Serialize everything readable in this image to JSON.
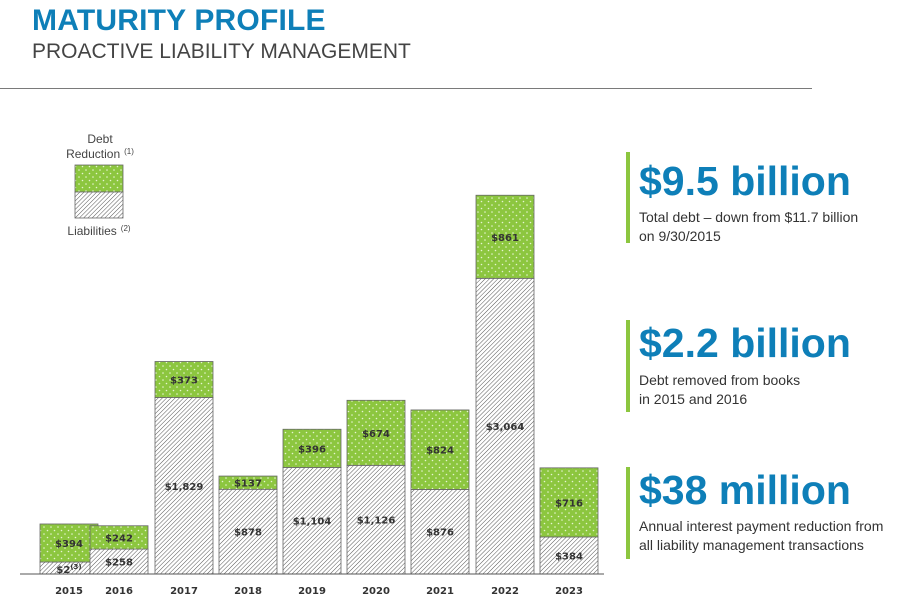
{
  "header": {
    "title": "MATURITY PROFILE",
    "subtitle": "PROACTIVE LIABILITY MANAGEMENT"
  },
  "legend": {
    "top_line1": "Debt",
    "top_line2": "Reduction",
    "top_note": "(1)",
    "bottom": "Liabilities",
    "bottom_note": "(2)"
  },
  "colors": {
    "title": "#0e7fb8",
    "debt_reduction": "#8cc63f",
    "liabilities": "#ffffff",
    "accent_bar": "#8cc63f"
  },
  "chart_data": {
    "type": "bar",
    "stacked": true,
    "categories": [
      "2015",
      "2016",
      "2017",
      "2018",
      "2019",
      "2020",
      "2021",
      "2022",
      "2023"
    ],
    "series": [
      {
        "name": "Liabilities",
        "values": [
          2,
          258,
          1829,
          878,
          1104,
          1126,
          876,
          3064,
          384
        ],
        "labels": [
          "$2",
          "$258",
          "$1,829",
          "$878",
          "$1,104",
          "$1,126",
          "$876",
          "$3,064",
          "$384"
        ]
      },
      {
        "name": "Debt Reduction",
        "values": [
          394,
          242,
          373,
          137,
          396,
          674,
          824,
          861,
          716
        ],
        "labels": [
          "$394",
          "$242",
          "$373",
          "$137",
          "$396",
          "$674",
          "$824",
          "$861",
          "$716"
        ]
      }
    ],
    "footnote_2015_liabilities": "(3)",
    "ylim": [
      0,
      4000
    ],
    "grid": false
  },
  "stats": [
    {
      "big": "$9.5 billion",
      "line1": "Total debt – down from $11.7 billion",
      "line2": "on 9/30/2015"
    },
    {
      "big": "$2.2 billion",
      "line1": "Debt removed from books",
      "line2": "in 2015 and 2016"
    },
    {
      "big": "$38 million",
      "line1": "Annual interest payment reduction from",
      "line2": "all liability management transactions"
    }
  ]
}
